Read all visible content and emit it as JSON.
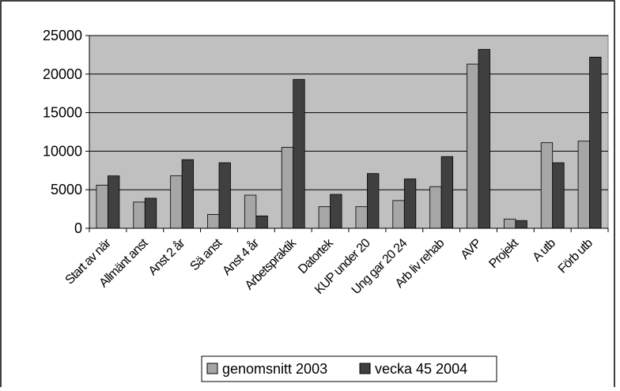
{
  "chart_data": {
    "type": "bar",
    "categories": [
      "Start av när",
      "Allmänt anst",
      "Anst 2 år",
      "Sä anst",
      "Anst 4 år",
      "Arbetspraktik",
      "Datortek",
      "KUP under 20",
      "Ung gar 20 24",
      "Arb liv rehab",
      "AVP",
      "Projekt",
      "A utb",
      "Förb utb"
    ],
    "series": [
      {
        "name": "genomsnitt 2003",
        "color": "#a6a6a6",
        "values": [
          5600,
          3400,
          6800,
          1800,
          4300,
          10500,
          2800,
          2800,
          3600,
          5400,
          21300,
          1200,
          11100,
          11300
        ]
      },
      {
        "name": "vecka 45 2004",
        "color": "#404040",
        "values": [
          6800,
          3900,
          8900,
          8500,
          1600,
          19300,
          4400,
          7100,
          6400,
          9300,
          23200,
          1000,
          8500,
          22200
        ]
      }
    ],
    "yticks": [
      "0",
      "5000",
      "10000",
      "15000",
      "20000",
      "25000"
    ],
    "ylim": [
      0,
      25000
    ],
    "grid": true,
    "legend_position": "bottom",
    "plot_background": "#c0c0c0"
  }
}
